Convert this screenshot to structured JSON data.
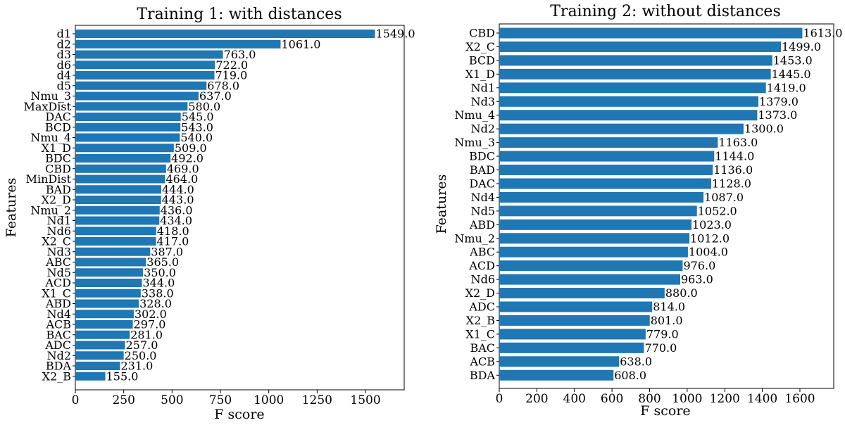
{
  "colors": {
    "bar": "#1f77b4",
    "background": "#ffffff",
    "axis": "#000000"
  },
  "chart_data": [
    {
      "type": "bar",
      "orientation": "horizontal",
      "title": "Training 1: with distances",
      "xlabel": "F score",
      "ylabel": "Features",
      "xlim": [
        0,
        1700
      ],
      "xticks": [
        0,
        250,
        500,
        750,
        1000,
        1250,
        1500
      ],
      "grid": false,
      "categories": [
        "d1",
        "d2",
        "d3",
        "d6",
        "d4",
        "d5",
        "Nmu_3",
        "MaxDist",
        "DAC",
        "BCD",
        "Nmu_4",
        "X1_D",
        "BDC",
        "CBD",
        "MinDist",
        "BAD",
        "X2_D",
        "Nmu_2",
        "Nd1",
        "Nd6",
        "X2_C",
        "Nd3",
        "ABC",
        "Nd5",
        "ACD",
        "X1_C",
        "ABD",
        "Nd4",
        "ACB",
        "BAC",
        "ADC",
        "Nd2",
        "BDA",
        "X2_B"
      ],
      "values": [
        1549,
        1061,
        763,
        722,
        719,
        678,
        637,
        580,
        545,
        543,
        540,
        509,
        492,
        469,
        464,
        444,
        443,
        436,
        434,
        418,
        417,
        387,
        365,
        350,
        344,
        338,
        328,
        302,
        297,
        281,
        257,
        250,
        231,
        155
      ],
      "value_labels": [
        "1549.0",
        "1061.0",
        "763.0",
        "722.0",
        "719.0",
        "678.0",
        "637.0",
        "580.0",
        "545.0",
        "543.0",
        "540.0",
        "509.0",
        "492.0",
        "469.0",
        "464.0",
        "444.0",
        "443.0",
        "436.0",
        "434.0",
        "418.0",
        "417.0",
        "387.0",
        "365.0",
        "350.0",
        "344.0",
        "338.0",
        "328.0",
        "302.0",
        "297.0",
        "281.0",
        "257.0",
        "250.0",
        "231.0",
        "155.0"
      ]
    },
    {
      "type": "bar",
      "orientation": "horizontal",
      "title": "Training 2: without distances",
      "xlabel": "F score",
      "ylabel": "Features",
      "xlim": [
        0,
        1780
      ],
      "xticks": [
        0,
        200,
        400,
        600,
        800,
        1000,
        1200,
        1400,
        1600
      ],
      "grid": false,
      "categories": [
        "CBD",
        "X2_C",
        "BCD",
        "X1_D",
        "Nd1",
        "Nd3",
        "Nmu_4",
        "Nd2",
        "Nmu_3",
        "BDC",
        "BAD",
        "DAC",
        "Nd4",
        "Nd5",
        "ABD",
        "Nmu_2",
        "ABC",
        "ACD",
        "Nd6",
        "X2_D",
        "ADC",
        "X2_B",
        "X1_C",
        "BAC",
        "ACB",
        "BDA"
      ],
      "values": [
        1613,
        1499,
        1453,
        1445,
        1419,
        1379,
        1373,
        1300,
        1163,
        1144,
        1136,
        1128,
        1087,
        1052,
        1023,
        1012,
        1004,
        976,
        963,
        880,
        814,
        801,
        779,
        770,
        638,
        608
      ],
      "value_labels": [
        "1613.0",
        "1499.0",
        "1453.0",
        "1445.0",
        "1419.0",
        "1379.0",
        "1373.0",
        "1300.0",
        "1163.0",
        "1144.0",
        "1136.0",
        "1128.0",
        "1087.0",
        "1052.0",
        "1023.0",
        "1012.0",
        "1004.0",
        "976.0",
        "963.0",
        "880.0",
        "814.0",
        "801.0",
        "779.0",
        "770.0",
        "638.0",
        "608.0"
      ]
    }
  ]
}
